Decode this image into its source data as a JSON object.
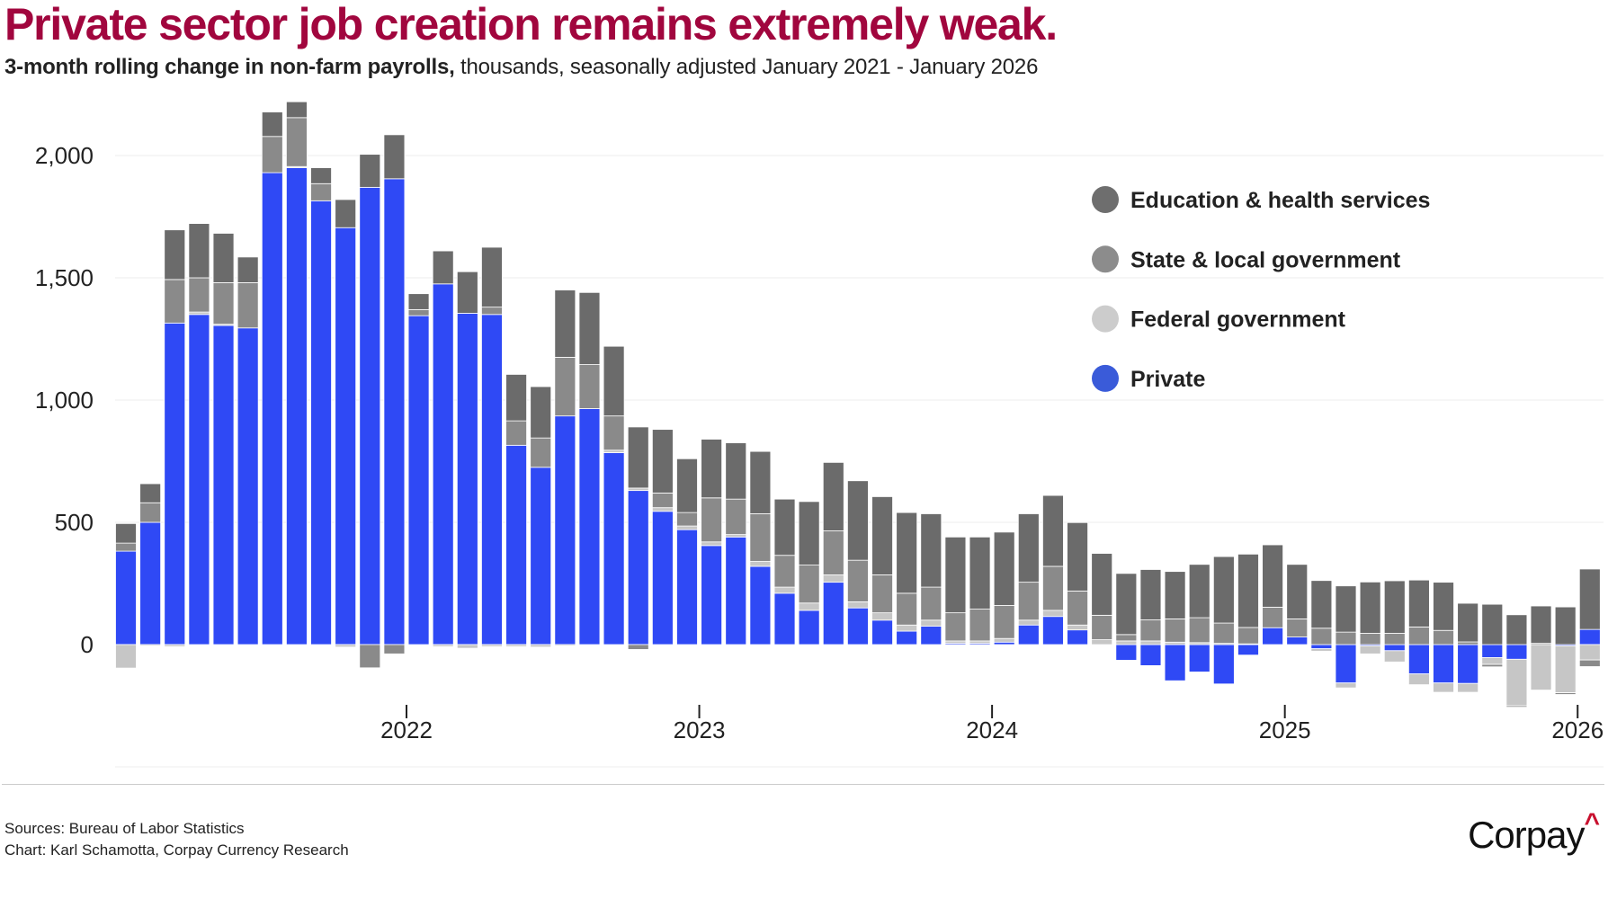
{
  "title": "Private sector job creation remains extremely weak.",
  "subtitle_bold": "3-month rolling change in non-farm payrolls,",
  "subtitle_rest": " thousands, seasonally adjusted January 2021 - January 2026",
  "footer": {
    "sources": "Sources: Bureau of Labor Statistics",
    "credit": "Chart: Karl Schamotta, Corpay Currency Research",
    "logo": "Corpay",
    "logo_mark": "^"
  },
  "chart_data": {
    "type": "bar",
    "stacked": true,
    "ylim": [
      -300,
      2250
    ],
    "yticks": [
      0,
      500,
      1000,
      1500,
      2000
    ],
    "ytick_labels": [
      "0",
      "500",
      "1,000",
      "1,500",
      "2,000"
    ],
    "xtick_labels": [
      "2022",
      "2023",
      "2024",
      "2025",
      "2026"
    ],
    "xtick_before_month": [
      "2022-01",
      "2023-01",
      "2024-01",
      "2025-01",
      "2026-01"
    ],
    "grid": true,
    "legend_position": "top-right",
    "categories": [
      "2021-01",
      "2021-02",
      "2021-03",
      "2021-04",
      "2021-05",
      "2021-06",
      "2021-07",
      "2021-08",
      "2021-09",
      "2021-10",
      "2021-11",
      "2021-12",
      "2022-01",
      "2022-02",
      "2022-03",
      "2022-04",
      "2022-05",
      "2022-06",
      "2022-07",
      "2022-08",
      "2022-09",
      "2022-10",
      "2022-11",
      "2022-12",
      "2023-01",
      "2023-02",
      "2023-03",
      "2023-04",
      "2023-05",
      "2023-06",
      "2023-07",
      "2023-08",
      "2023-09",
      "2023-10",
      "2023-11",
      "2023-12",
      "2024-01",
      "2024-02",
      "2024-03",
      "2024-04",
      "2024-05",
      "2024-06",
      "2024-07",
      "2024-08",
      "2024-09",
      "2024-10",
      "2024-11",
      "2024-12",
      "2025-01",
      "2025-02",
      "2025-03",
      "2025-04",
      "2025-05",
      "2025-06",
      "2025-07",
      "2025-08",
      "2025-09",
      "2025-10",
      "2025-11",
      "2025-12",
      "2026-01"
    ],
    "series": [
      {
        "name": "Private",
        "color": "#2f49f5",
        "legend_color": "#3a5bd9",
        "values": [
          382,
          500,
          1315,
          1350,
          1305,
          1295,
          1930,
          1950,
          1815,
          1705,
          1870,
          1905,
          1345,
          1475,
          1355,
          1350,
          815,
          725,
          935,
          965,
          785,
          630,
          545,
          470,
          405,
          440,
          320,
          210,
          140,
          255,
          150,
          100,
          55,
          75,
          5,
          5,
          10,
          80,
          115,
          60,
          -3,
          -64,
          -86,
          -148,
          -112,
          -161,
          -43,
          69,
          31,
          -17,
          -157,
          -5,
          -25,
          -120,
          -157,
          -159,
          -53,
          -60,
          0,
          -5,
          62
        ]
      },
      {
        "name": "Federal government",
        "color": "#c6c6c6",
        "legend_color": "#cccccc",
        "values": [
          -96,
          -5,
          -8,
          10,
          5,
          0,
          0,
          5,
          0,
          -10,
          0,
          0,
          0,
          -8,
          -15,
          -8,
          -8,
          -10,
          -5,
          0,
          10,
          10,
          15,
          15,
          15,
          10,
          20,
          25,
          30,
          30,
          25,
          30,
          25,
          25,
          10,
          10,
          15,
          20,
          25,
          20,
          20,
          15,
          15,
          10,
          8,
          5,
          3,
          0,
          0,
          -10,
          -20,
          -33,
          -46,
          -44,
          -38,
          -36,
          -28,
          -190,
          -186,
          -192,
          -63
        ]
      },
      {
        "name": "State & local government",
        "color": "#8a8a8a",
        "legend_color": "#8c8c8c",
        "values": [
          33,
          80,
          178,
          140,
          170,
          185,
          148,
          200,
          70,
          0,
          -95,
          -38,
          25,
          0,
          0,
          30,
          100,
          120,
          240,
          180,
          140,
          -20,
          60,
          55,
          180,
          145,
          195,
          130,
          155,
          180,
          170,
          155,
          130,
          135,
          115,
          130,
          135,
          155,
          180,
          139,
          100,
          26,
          86,
          95,
          102,
          83,
          67,
          84,
          74,
          67,
          51,
          46,
          46,
          72,
          58,
          11,
          -10,
          -6,
          5,
          -7,
          -27
        ]
      },
      {
        "name": "Education & health services",
        "color": "#6b6b6b",
        "legend_color": "#6e6e6e",
        "values": [
          80,
          78,
          203,
          222,
          202,
          105,
          100,
          65,
          65,
          115,
          135,
          180,
          65,
          135,
          170,
          245,
          190,
          210,
          275,
          295,
          285,
          250,
          260,
          220,
          240,
          230,
          255,
          230,
          260,
          280,
          325,
          320,
          330,
          300,
          310,
          295,
          300,
          280,
          290,
          280,
          253,
          250,
          206,
          194,
          218,
          272,
          300,
          255,
          223,
          195,
          189,
          210,
          215,
          192,
          197,
          158,
          165,
          122,
          153,
          154,
          247
        ]
      }
    ],
    "legend_order": [
      "Education & health services",
      "State & local government",
      "Federal government",
      "Private"
    ]
  }
}
